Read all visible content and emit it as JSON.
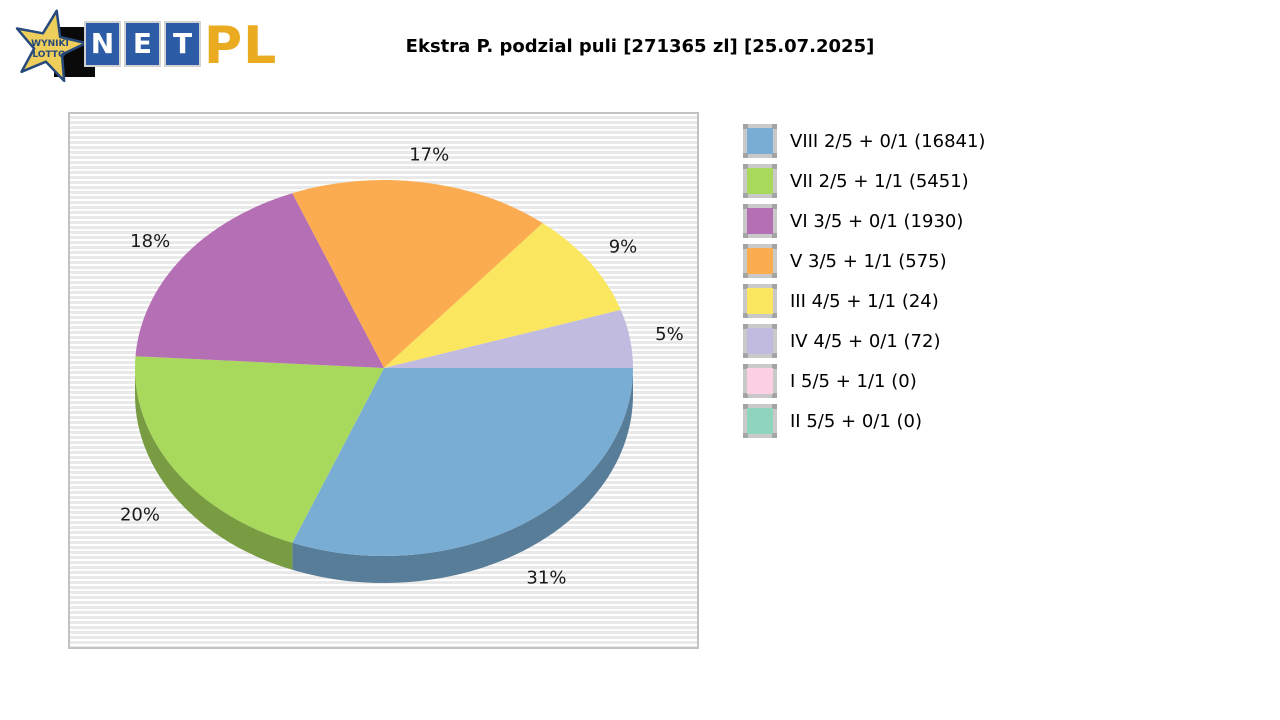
{
  "logo": {
    "star_line1": "WYNIKI",
    "star_line2": "LOTTO",
    "net_letters": [
      "N",
      "E",
      "T"
    ],
    "suffix": "PL",
    "colors": {
      "star_fill": "#eecf5b",
      "star_outline": "#27497c",
      "box_blue": "#2d5ca6",
      "pl_gold": "#eaab20"
    }
  },
  "header": {
    "title": "Ekstra P. podzial puli [271365 zl] [25.07.2025]"
  },
  "chart_data": {
    "type": "pie",
    "style": "3d",
    "title": "Ekstra P. podzial puli [271365 zl] [25.07.2025]",
    "pool_total": "271365 zl",
    "date": "25.07.2025",
    "unit": "%",
    "legend_position": "right",
    "background_stripes": [
      "#ffffff",
      "#e9e9e9"
    ],
    "slices": [
      {
        "id": "viii",
        "label": "VIII 2/5 + 0/1",
        "winners": 16841,
        "percent": 31,
        "legend_label": "VIII 2/5 + 0/1 (16841)",
        "color": "#7aadd4"
      },
      {
        "id": "vii",
        "label": "VII 2/5 + 1/1",
        "winners": 5451,
        "percent": 20,
        "legend_label": "VII 2/5 + 1/1 (5451)",
        "color": "#a8d95c"
      },
      {
        "id": "vi",
        "label": "VI 3/5 + 0/1",
        "winners": 1930,
        "percent": 18,
        "legend_label": "VI 3/5 + 0/1 (1930)",
        "color": "#b56fb5"
      },
      {
        "id": "v",
        "label": "V 3/5 + 1/1",
        "winners": 575,
        "percent": 17,
        "legend_label": "V 3/5 + 1/1 (575)",
        "color": "#fbac51"
      },
      {
        "id": "iii",
        "label": "III 4/5 + 1/1",
        "winners": 24,
        "percent": 9,
        "legend_label": "III 4/5 + 1/1 (24)",
        "color": "#fae75f"
      },
      {
        "id": "iv",
        "label": "IV 4/5 + 0/1",
        "winners": 72,
        "percent": 5,
        "legend_label": "IV 4/5 + 0/1 (72)",
        "color": "#c1bcdf"
      },
      {
        "id": "i",
        "label": "I 5/5 + 1/1",
        "winners": 0,
        "percent": 0,
        "legend_label": "I 5/5 + 1/1 (0)",
        "color": "#fbcfe4"
      },
      {
        "id": "ii",
        "label": "II 5/5 + 0/1",
        "winners": 0,
        "percent": 0,
        "legend_label": "II 5/5 + 0/1 (0)",
        "color": "#8ed4bf"
      }
    ]
  }
}
